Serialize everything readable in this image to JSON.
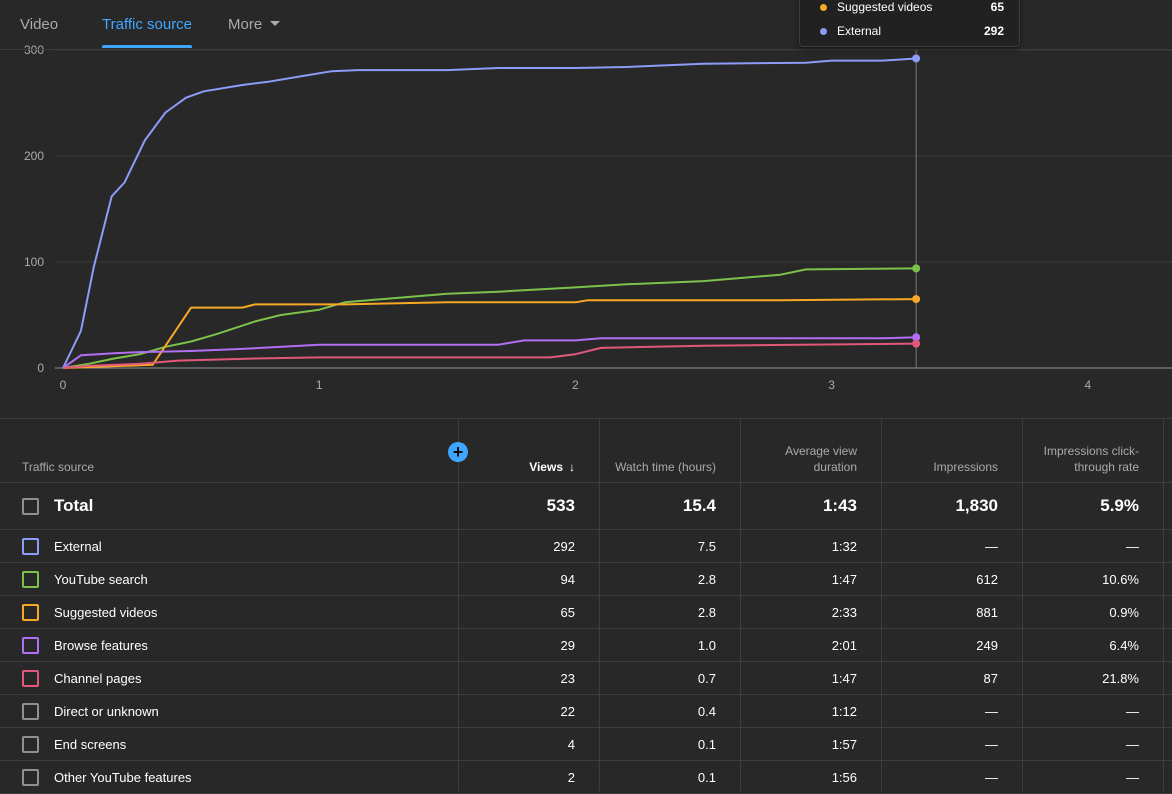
{
  "tabs": [
    {
      "label": "Video"
    },
    {
      "label": "Traffic source"
    },
    {
      "label": "More"
    }
  ],
  "tooltip": [
    {
      "label": "Suggested videos",
      "value": "65",
      "color": "#f9a825"
    },
    {
      "label": "External",
      "value": "292",
      "color": "#8c9cf8"
    }
  ],
  "chart_data": {
    "type": "line",
    "xlim": [
      0,
      4.3
    ],
    "ylim": [
      0,
      300
    ],
    "xticks": [
      0,
      1,
      2,
      3,
      4
    ],
    "yticks": [
      0,
      100,
      200,
      300
    ],
    "grid": true,
    "cursor_x": 3.33,
    "series": [
      {
        "name": "External",
        "color": "#8c9cf8",
        "x": [
          0,
          0.07,
          0.12,
          0.19,
          0.24,
          0.32,
          0.4,
          0.48,
          0.55,
          0.7,
          0.8,
          0.95,
          1.05,
          1.15,
          1.5,
          1.7,
          2.0,
          2.2,
          2.3,
          2.5,
          2.9,
          3.0,
          3.2,
          3.33
        ],
        "y": [
          0,
          35,
          95,
          162,
          175,
          215,
          241,
          255,
          261,
          267,
          270,
          276,
          280,
          281,
          281,
          283,
          283,
          284,
          285,
          287,
          288,
          290,
          290,
          292
        ]
      },
      {
        "name": "YouTube search",
        "color": "#7cc24a",
        "x": [
          0,
          0.1,
          0.2,
          0.3,
          0.4,
          0.5,
          0.6,
          0.75,
          0.85,
          1.0,
          1.1,
          1.3,
          1.5,
          1.7,
          2.0,
          2.2,
          2.5,
          2.8,
          2.9,
          3.33
        ],
        "y": [
          0,
          4,
          9,
          13,
          20,
          25,
          32,
          44,
          50,
          55,
          62,
          66,
          70,
          72,
          76,
          79,
          82,
          88,
          93,
          94
        ]
      },
      {
        "name": "Suggested videos",
        "color": "#f9a825",
        "x": [
          0,
          0.35,
          0.5,
          0.7,
          0.75,
          1.1,
          1.5,
          2.0,
          2.05,
          2.8,
          3.33
        ],
        "y": [
          0,
          3,
          57,
          57,
          60,
          60,
          62,
          62,
          64,
          64,
          65
        ]
      },
      {
        "name": "Browse features",
        "color": "#b26ef5",
        "x": [
          0,
          0.07,
          0.2,
          0.3,
          0.5,
          0.7,
          1.0,
          1.7,
          1.8,
          2.0,
          2.1,
          3.2,
          3.33
        ],
        "y": [
          0,
          12,
          14,
          15,
          16,
          18,
          22,
          22,
          26,
          26,
          28,
          28,
          29
        ]
      },
      {
        "name": "Channel pages",
        "color": "#e2587a",
        "x": [
          0,
          0.1,
          0.3,
          0.45,
          0.75,
          1.0,
          1.9,
          2.0,
          2.1,
          2.5,
          3.33
        ],
        "y": [
          0,
          2,
          4,
          7,
          9,
          10,
          10,
          13,
          19,
          21,
          23
        ]
      }
    ]
  },
  "table": {
    "headers": [
      {
        "label": "Traffic source"
      },
      {
        "label": "Views"
      },
      {
        "label": "Watch time (hours)"
      },
      {
        "label": "Average view duration"
      },
      {
        "label": "Impressions"
      },
      {
        "label": "Impressions click-through rate"
      }
    ],
    "sort_arrow": "↓",
    "add_symbol": "+",
    "total": {
      "name": "Total",
      "views": "533",
      "watch": "15.4",
      "avd": "1:43",
      "impr": "1,830",
      "ctr": "5.9%"
    },
    "rows": [
      {
        "name": "External",
        "views": "292",
        "watch": "7.5",
        "avd": "1:32",
        "impr": "—",
        "ctr": "—",
        "color": "#8c9cf8"
      },
      {
        "name": "YouTube search",
        "views": "94",
        "watch": "2.8",
        "avd": "1:47",
        "impr": "612",
        "ctr": "10.6%",
        "color": "#7cc24a"
      },
      {
        "name": "Suggested videos",
        "views": "65",
        "watch": "2.8",
        "avd": "2:33",
        "impr": "881",
        "ctr": "0.9%",
        "color": "#f9a825"
      },
      {
        "name": "Browse features",
        "views": "29",
        "watch": "1.0",
        "avd": "2:01",
        "impr": "249",
        "ctr": "6.4%",
        "color": "#b26ef5"
      },
      {
        "name": "Channel pages",
        "views": "23",
        "watch": "0.7",
        "avd": "1:47",
        "impr": "87",
        "ctr": "21.8%",
        "color": "#e2587a"
      },
      {
        "name": "Direct or unknown",
        "views": "22",
        "watch": "0.4",
        "avd": "1:12",
        "impr": "—",
        "ctr": "—",
        "color": "#909090"
      },
      {
        "name": "End screens",
        "views": "4",
        "watch": "0.1",
        "avd": "1:57",
        "impr": "—",
        "ctr": "—",
        "color": "#909090"
      },
      {
        "name": "Other YouTube features",
        "views": "2",
        "watch": "0.1",
        "avd": "1:56",
        "impr": "—",
        "ctr": "—",
        "color": "#909090"
      }
    ]
  }
}
